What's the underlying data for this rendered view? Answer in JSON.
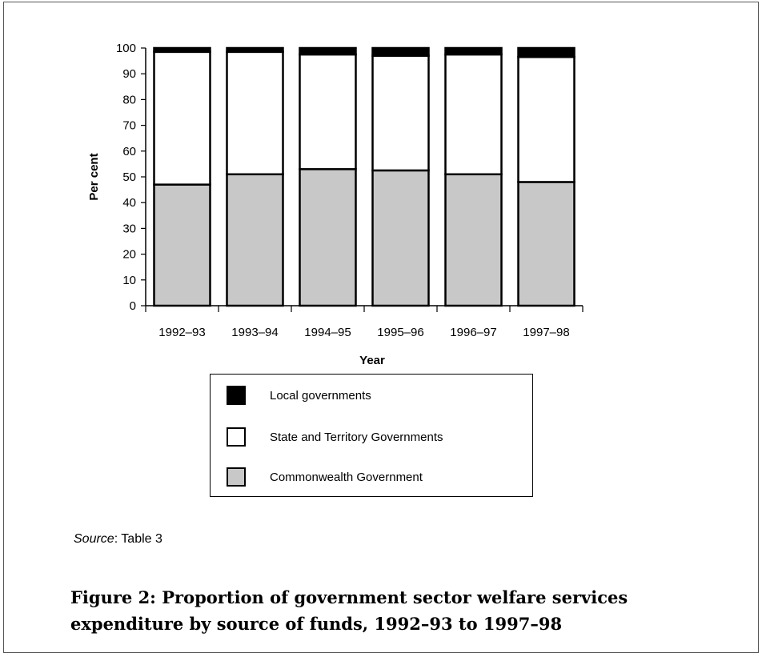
{
  "chart_data": {
    "type": "bar",
    "stacked": true,
    "categories": [
      "1992–93",
      "1993–94",
      "1994–95",
      "1995–96",
      "1996–97",
      "1997–98"
    ],
    "series": [
      {
        "name": "Commonwealth Government",
        "color": "#c8c8c8",
        "values": [
          47,
          51,
          53,
          52.5,
          51,
          48
        ]
      },
      {
        "name": "State and Territory Governments",
        "color": "#ffffff",
        "values": [
          51.5,
          47.5,
          44.5,
          44.5,
          46.5,
          48.5
        ]
      },
      {
        "name": "Local governments",
        "color": "#000000",
        "values": [
          1.5,
          1.5,
          2.5,
          3,
          2.5,
          3.5
        ]
      }
    ],
    "xlabel": "Year",
    "ylabel": "Per cent",
    "ylim": [
      0,
      100
    ],
    "yticks": [
      0,
      10,
      20,
      30,
      40,
      50,
      60,
      70,
      80,
      90,
      100
    ],
    "legend_position": "below-chart",
    "grid": false
  },
  "legend": {
    "items": [
      {
        "label": "Local governments",
        "color": "#000000"
      },
      {
        "label": "State and Territory Governments",
        "color": "#ffffff"
      },
      {
        "label": "Commonwealth Government",
        "color": "#c8c8c8"
      }
    ]
  },
  "source": {
    "label": "Source",
    "text": ": Table 3"
  },
  "caption": "Figure 2: Proportion of government sector welfare services expenditure by source of funds, 1992–93 to 1997–98"
}
